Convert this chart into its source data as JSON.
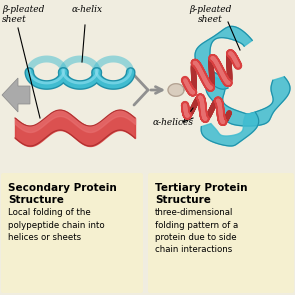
{
  "bg_color": "#f0ede0",
  "panel_bg": "#f5f0d0",
  "title_left": "Secondary Protein\nStructure",
  "desc_left": "Local folding of the\npolypeptide chain into\nhelices or sheets",
  "title_right": "Tertiary Protein\nStructure",
  "desc_right": "three-dimensional\nfolding pattern of a\nprotein due to side\nchain interactions",
  "label_beta_left": "β-pleated\nsheet",
  "label_alpha_left": "α-helix",
  "label_beta_right": "β-pleated\nsheet",
  "label_alpha_right": "α-helices",
  "helix_color": "#40bcd0",
  "helix_dark": "#2090a8",
  "sheet_red": "#d94040",
  "sheet_red_dark": "#b03030",
  "arrow_gray": "#909090",
  "text_title_size": 7.5,
  "text_desc_size": 6.2,
  "text_label_size": 6.5
}
